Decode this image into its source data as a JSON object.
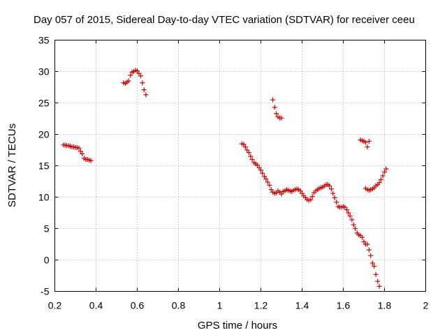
{
  "chart_data": {
    "type": "scatter",
    "title": "Day 057 of 2015, Sidereal Day-to-day VTEC variation (SDTVAR) for receiver ceeu",
    "xlabel": "GPS time / hours",
    "ylabel": "SDTVAR / TECUs",
    "xlim": [
      0.2,
      2.0
    ],
    "ylim": [
      -5,
      35
    ],
    "xticks": [
      0.2,
      0.4,
      0.6,
      0.8,
      1.0,
      1.2,
      1.4,
      1.6,
      1.8,
      2.0
    ],
    "xtick_labels": [
      "0.2",
      "0.4",
      "0.6",
      "0.8",
      "1",
      "1.2",
      "1.4",
      "1.6",
      "1.8",
      "2"
    ],
    "yticks": [
      -5,
      0,
      5,
      10,
      15,
      20,
      25,
      30,
      35
    ],
    "ytick_labels": [
      "-5",
      "0",
      "5",
      "10",
      "15",
      "20",
      "25",
      "30",
      "35"
    ],
    "grid": true,
    "marker": "+",
    "color": "#cc0000",
    "series": [
      {
        "name": "SDTVAR",
        "points": [
          [
            0.242,
            18.3
          ],
          [
            0.25,
            18.3
          ],
          [
            0.258,
            18.2
          ],
          [
            0.267,
            18.2
          ],
          [
            0.275,
            18.1
          ],
          [
            0.283,
            18.0
          ],
          [
            0.292,
            18.0
          ],
          [
            0.3,
            17.9
          ],
          [
            0.308,
            17.9
          ],
          [
            0.317,
            17.8
          ],
          [
            0.325,
            17.3
          ],
          [
            0.333,
            16.9
          ],
          [
            0.342,
            16.2
          ],
          [
            0.35,
            16.0
          ],
          [
            0.358,
            16.0
          ],
          [
            0.367,
            15.9
          ],
          [
            0.375,
            15.8
          ],
          [
            0.533,
            28.2
          ],
          [
            0.542,
            28.1
          ],
          [
            0.55,
            28.3
          ],
          [
            0.558,
            28.5
          ],
          [
            0.567,
            29.4
          ],
          [
            0.575,
            29.9
          ],
          [
            0.583,
            30.0
          ],
          [
            0.592,
            30.2
          ],
          [
            0.6,
            30.1
          ],
          [
            0.608,
            29.7
          ],
          [
            0.617,
            29.3
          ],
          [
            0.625,
            28.2
          ],
          [
            0.633,
            27.1
          ],
          [
            0.642,
            26.3
          ],
          [
            1.108,
            18.5
          ],
          [
            1.117,
            18.4
          ],
          [
            1.125,
            18.0
          ],
          [
            1.133,
            17.5
          ],
          [
            1.142,
            17.1
          ],
          [
            1.15,
            16.5
          ],
          [
            1.158,
            16.0
          ],
          [
            1.167,
            15.5
          ],
          [
            1.175,
            15.3
          ],
          [
            1.183,
            15.1
          ],
          [
            1.192,
            14.7
          ],
          [
            1.2,
            14.3
          ],
          [
            1.208,
            13.8
          ],
          [
            1.217,
            13.3
          ],
          [
            1.225,
            12.9
          ],
          [
            1.233,
            12.4
          ],
          [
            1.242,
            11.9
          ],
          [
            1.25,
            11.2
          ],
          [
            1.258,
            10.8
          ],
          [
            1.267,
            10.6
          ],
          [
            1.275,
            10.7
          ],
          [
            1.283,
            11.0
          ],
          [
            1.292,
            10.8
          ],
          [
            1.3,
            10.5
          ],
          [
            1.308,
            10.9
          ],
          [
            1.317,
            11.0
          ],
          [
            1.325,
            11.2
          ],
          [
            1.333,
            11.1
          ],
          [
            1.342,
            11.0
          ],
          [
            1.35,
            10.9
          ],
          [
            1.358,
            11.1
          ],
          [
            1.367,
            11.2
          ],
          [
            1.375,
            11.3
          ],
          [
            1.383,
            11.2
          ],
          [
            1.392,
            11.0
          ],
          [
            1.4,
            10.6
          ],
          [
            1.408,
            10.2
          ],
          [
            1.417,
            9.9
          ],
          [
            1.425,
            9.6
          ],
          [
            1.433,
            9.5
          ],
          [
            1.442,
            9.6
          ],
          [
            1.45,
            10.1
          ],
          [
            1.458,
            10.7
          ],
          [
            1.467,
            11.0
          ],
          [
            1.475,
            11.2
          ],
          [
            1.483,
            11.4
          ],
          [
            1.492,
            11.5
          ],
          [
            1.5,
            11.6
          ],
          [
            1.508,
            11.8
          ],
          [
            1.517,
            12.0
          ],
          [
            1.525,
            12.0
          ],
          [
            1.533,
            11.8
          ],
          [
            1.542,
            11.3
          ],
          [
            1.55,
            10.6
          ],
          [
            1.558,
            9.9
          ],
          [
            1.567,
            9.2
          ],
          [
            1.575,
            8.5
          ],
          [
            1.583,
            8.4
          ],
          [
            1.592,
            8.4
          ],
          [
            1.6,
            8.5
          ],
          [
            1.608,
            8.4
          ],
          [
            1.617,
            8.0
          ],
          [
            1.625,
            7.5
          ],
          [
            1.633,
            7.0
          ],
          [
            1.642,
            6.4
          ],
          [
            1.65,
            5.6
          ],
          [
            1.658,
            5.0
          ],
          [
            1.667,
            4.3
          ],
          [
            1.675,
            4.0
          ],
          [
            1.683,
            3.9
          ],
          [
            1.692,
            3.6
          ],
          [
            1.7,
            2.9
          ],
          [
            1.708,
            2.5
          ],
          [
            1.717,
            2.5
          ],
          [
            1.725,
            1.6
          ],
          [
            1.733,
            0.7
          ],
          [
            1.742,
            -0.5
          ],
          [
            1.75,
            -1.0
          ],
          [
            1.758,
            -2.3
          ],
          [
            1.767,
            -3.4
          ],
          [
            1.775,
            -4.2
          ],
          [
            1.258,
            25.5
          ],
          [
            1.267,
            24.3
          ],
          [
            1.275,
            23.3
          ],
          [
            1.283,
            22.8
          ],
          [
            1.292,
            22.6
          ],
          [
            1.3,
            22.6
          ],
          [
            1.683,
            19.1
          ],
          [
            1.692,
            19.0
          ],
          [
            1.7,
            18.9
          ],
          [
            1.708,
            18.7
          ],
          [
            1.717,
            18.0
          ],
          [
            1.725,
            18.9
          ],
          [
            1.708,
            11.4
          ],
          [
            1.717,
            11.2
          ],
          [
            1.725,
            11.1
          ],
          [
            1.733,
            11.2
          ],
          [
            1.742,
            11.3
          ],
          [
            1.75,
            11.5
          ],
          [
            1.758,
            11.8
          ],
          [
            1.767,
            12.0
          ],
          [
            1.775,
            12.3
          ],
          [
            1.783,
            12.8
          ],
          [
            1.792,
            13.4
          ],
          [
            1.8,
            14.0
          ],
          [
            1.808,
            14.5
          ]
        ]
      }
    ]
  }
}
